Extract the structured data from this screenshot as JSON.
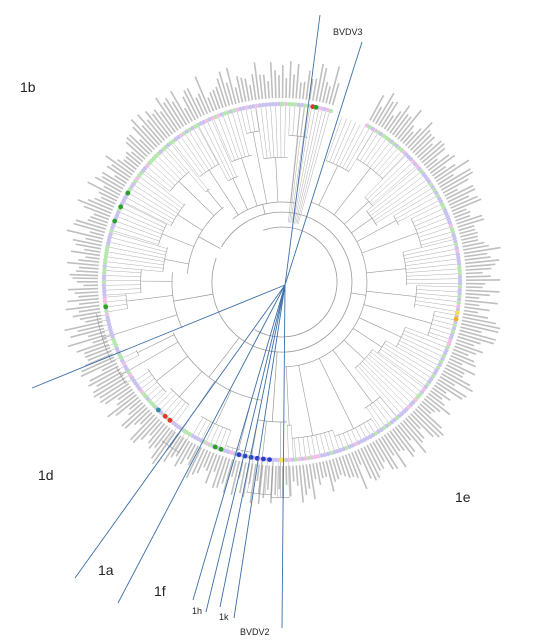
{
  "clade_labels": {
    "bvdv3": "BVDV3",
    "1b": "1b",
    "1d": "1d",
    "1e": "1e",
    "1a": "1a",
    "1f": "1f",
    "1h": "1h",
    "1k": "1k",
    "bvdv2": "BVDV2"
  },
  "colors": {
    "divider_line": "#3c6fa8",
    "branch": "#9a9a9a",
    "tip_label": "#8a8a8a",
    "marker_lavender": "#c9c3f0",
    "marker_green": "#b8e6b0",
    "marker_pink": "#f2c0e6",
    "marker_red": "#e23a2a",
    "marker_blue": "#2a3fd0",
    "marker_darkgreen": "#2aa02a",
    "marker_orange": "#f0b02a",
    "marker_yellow": "#f3df5a",
    "marker_teal": "#2a8ea0"
  }
}
